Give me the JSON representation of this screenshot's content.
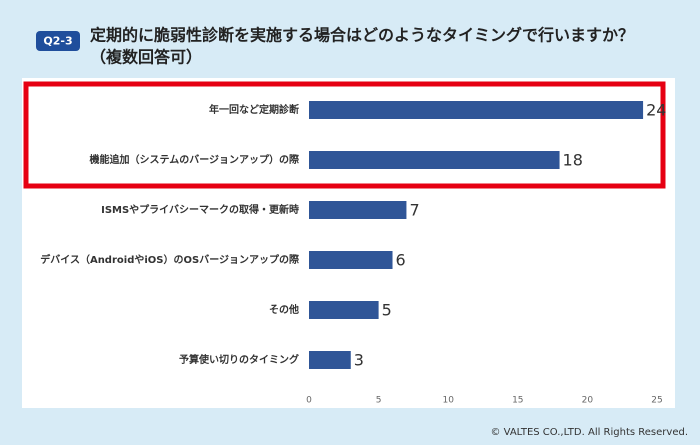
{
  "badge": "Q2-3",
  "footer": "© VALTES CO.,LTD. All Rights Reserved.",
  "chart_data": {
    "type": "hbar",
    "title": "定期的に脆弱性診断を実施する場合はどのようなタイミングで行いますか？",
    "subtitle": "（複数回答可）",
    "categories": [
      "年一回など定期診断",
      "機能追加（システムのバージョンアップ）の際",
      "ISMSやプライバシーマークの取得・更新時",
      "デバイス（AndroidやiOS）のOSバージョンアップの際",
      "その他",
      "予算使い切りのタイミング"
    ],
    "values": [
      24,
      18,
      7,
      6,
      5,
      3
    ],
    "color": "#2f5597",
    "xlim": [
      0,
      25
    ],
    "xticks": [
      0,
      5,
      10,
      15,
      20,
      25
    ],
    "grid": false
  }
}
